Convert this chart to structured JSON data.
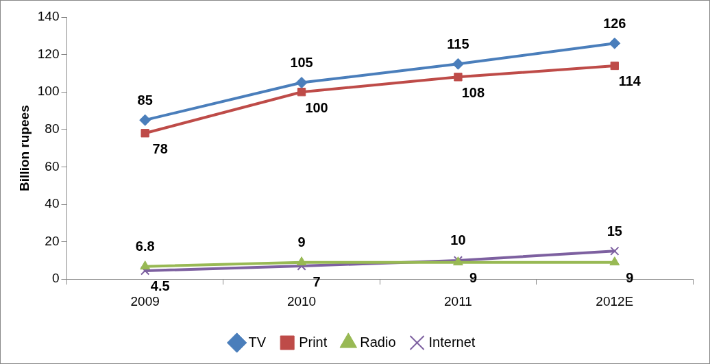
{
  "chart_data": {
    "type": "line",
    "ylabel": "Billion rupees",
    "categories": [
      "2009",
      "2010",
      "2011",
      "2012E"
    ],
    "series": [
      {
        "name": "TV",
        "color": "#4a7ebb",
        "marker": "diamond",
        "values": [
          85,
          105,
          115,
          126
        ]
      },
      {
        "name": "Print",
        "color": "#be4b48",
        "marker": "square",
        "values": [
          78,
          100,
          108,
          114
        ]
      },
      {
        "name": "Radio",
        "color": "#98b954",
        "marker": "triangle",
        "values": [
          6.8,
          9,
          9,
          9
        ]
      },
      {
        "name": "Internet",
        "color": "#7d60a0",
        "marker": "cross",
        "values": [
          4.5,
          7,
          10,
          15
        ]
      }
    ],
    "ylim": [
      0,
      140
    ],
    "yticks": [
      0,
      20,
      40,
      60,
      80,
      100,
      120,
      140
    ],
    "grid": false,
    "legend": "bottom",
    "data_labels": true
  }
}
